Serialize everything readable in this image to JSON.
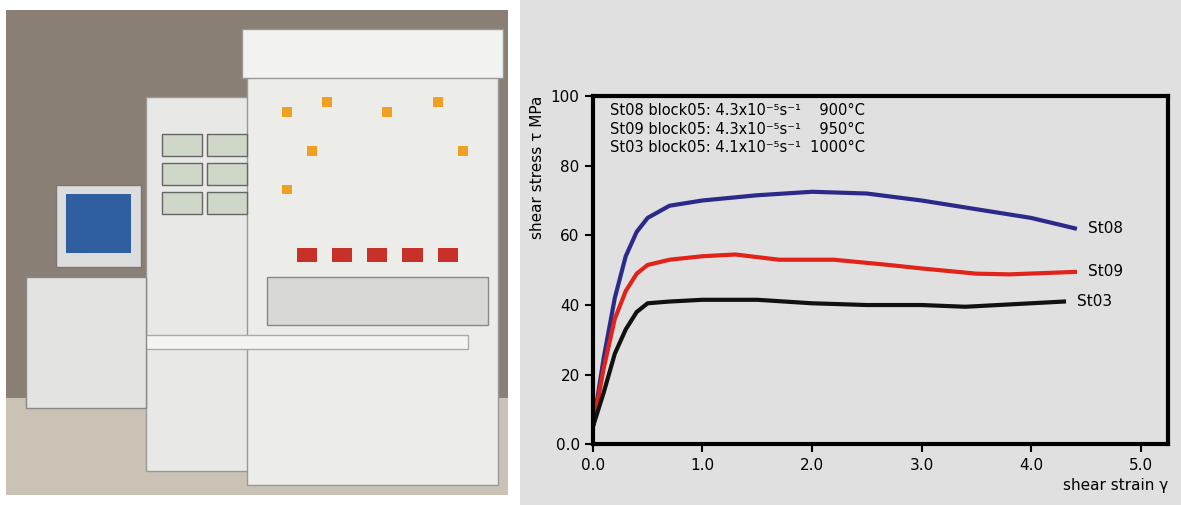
{
  "chart_data": {
    "type": "line",
    "x_label": "shear strain γ",
    "y_label": "shear stress τ MPa",
    "annotations": [
      "St08 block05: 4.3x10⁻⁵s⁻¹    900°C",
      "St09 block05: 4.3x10⁻⁵s⁻¹    950°C",
      "St03 block05: 4.1x10⁻⁵s⁻¹  1000°C"
    ],
    "xlim": [
      0,
      5.25
    ],
    "ylim": [
      0,
      100
    ],
    "xticks": [
      {
        "value": 0,
        "label": "0.0"
      },
      {
        "value": 1,
        "label": "1.0"
      },
      {
        "value": 2,
        "label": "2.0"
      },
      {
        "value": 3,
        "label": "3.0"
      },
      {
        "value": 4,
        "label": "4.0"
      },
      {
        "value": 5,
        "label": "5.0"
      }
    ],
    "yticks": [
      {
        "value": 0,
        "label": "0.0"
      },
      20,
      40,
      60,
      80,
      100
    ],
    "grid": false,
    "series": [
      {
        "name": "St08",
        "color": "#2b2a8a",
        "x": [
          0,
          0.1,
          0.2,
          0.3,
          0.4,
          0.5,
          0.7,
          1.0,
          1.5,
          2.0,
          2.5,
          3.0,
          3.5,
          4.0,
          4.4
        ],
        "values": [
          5,
          25,
          42,
          54,
          61,
          65,
          68.5,
          70,
          71.5,
          72.5,
          72,
          70,
          67.5,
          65,
          62
        ]
      },
      {
        "name": "St09",
        "color": "#e2231a",
        "x": [
          0,
          0.1,
          0.2,
          0.3,
          0.4,
          0.5,
          0.7,
          1.0,
          1.3,
          1.7,
          2.2,
          2.7,
          3.0,
          3.5,
          3.8,
          4.4
        ],
        "values": [
          5,
          22,
          36,
          44,
          49,
          51.5,
          53,
          54,
          54.5,
          53,
          53,
          51.5,
          50.5,
          49,
          48.8,
          49.5
        ]
      },
      {
        "name": "St03",
        "color": "#111111",
        "x": [
          0,
          0.1,
          0.2,
          0.3,
          0.4,
          0.5,
          0.7,
          1.0,
          1.5,
          2.0,
          2.5,
          3.0,
          3.4,
          4.0,
          4.3
        ],
        "values": [
          5,
          15,
          26,
          33,
          38,
          40.5,
          41,
          41.5,
          41.5,
          40.5,
          40,
          40,
          39.5,
          40.5,
          41
        ]
      }
    ]
  }
}
